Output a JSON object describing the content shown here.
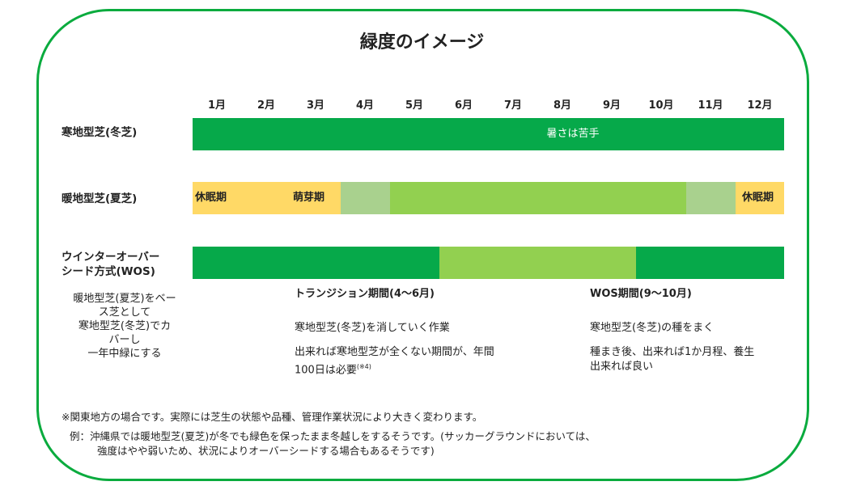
{
  "title": "緑度のイメージ",
  "months": [
    "1月",
    "2月",
    "3月",
    "4月",
    "5月",
    "6月",
    "7月",
    "8月",
    "9月",
    "10月",
    "11月",
    "12月"
  ],
  "colors": {
    "frame": "#0aab3e",
    "dark_green": "#06a94a",
    "light_green": "#92d050",
    "pale_green": "#a9d18e",
    "yellow": "#ffd966"
  },
  "rows": {
    "cool": {
      "label": "寒地型芝(冬芝)",
      "text": "暑さは苦手"
    },
    "warm": {
      "label": "暖地型芝(夏芝)",
      "text_left": "休眠期",
      "text_sprout": "萌芽期",
      "text_right": "休眠期"
    },
    "wos": {
      "label_line1": "ウインターオーバー",
      "label_line2": "シード方式(WOS)"
    }
  },
  "wos_desc": {
    "line1": "暖地型芝(夏芝)をベー",
    "line2": "ス芝として",
    "line3": "寒地型芝(冬芝)でカ",
    "line4": "バーし",
    "line5": "一年中緑にする"
  },
  "transition": {
    "heading": "トランジション期間(4～6月)",
    "line1": "寒地型芝(冬芝)を消していく作業",
    "line2": "出来れば寒地型芝が全くない期間が、年間",
    "line3": "100日は必要",
    "ref": "(※4)"
  },
  "wos_period": {
    "heading": "WOS期間(9～10月)",
    "line1": "寒地型芝(冬芝)の種をまく",
    "line2": "種まき後、出来れば1か月程、養生",
    "line3": "出来れば良い"
  },
  "footnote": {
    "line1": "※関東地方の場合です。実際には芝生の状態や品種、管理作業状況により大きく変わります。",
    "line2": "例：沖縄県では暖地型芝(夏芝)が冬でも緑色を保ったまま冬越しをするそうです。(サッカーグラウンドにおいては、",
    "line3": "強度はやや弱いため、状況によりオーバーシードする場合もあるそうです)"
  }
}
